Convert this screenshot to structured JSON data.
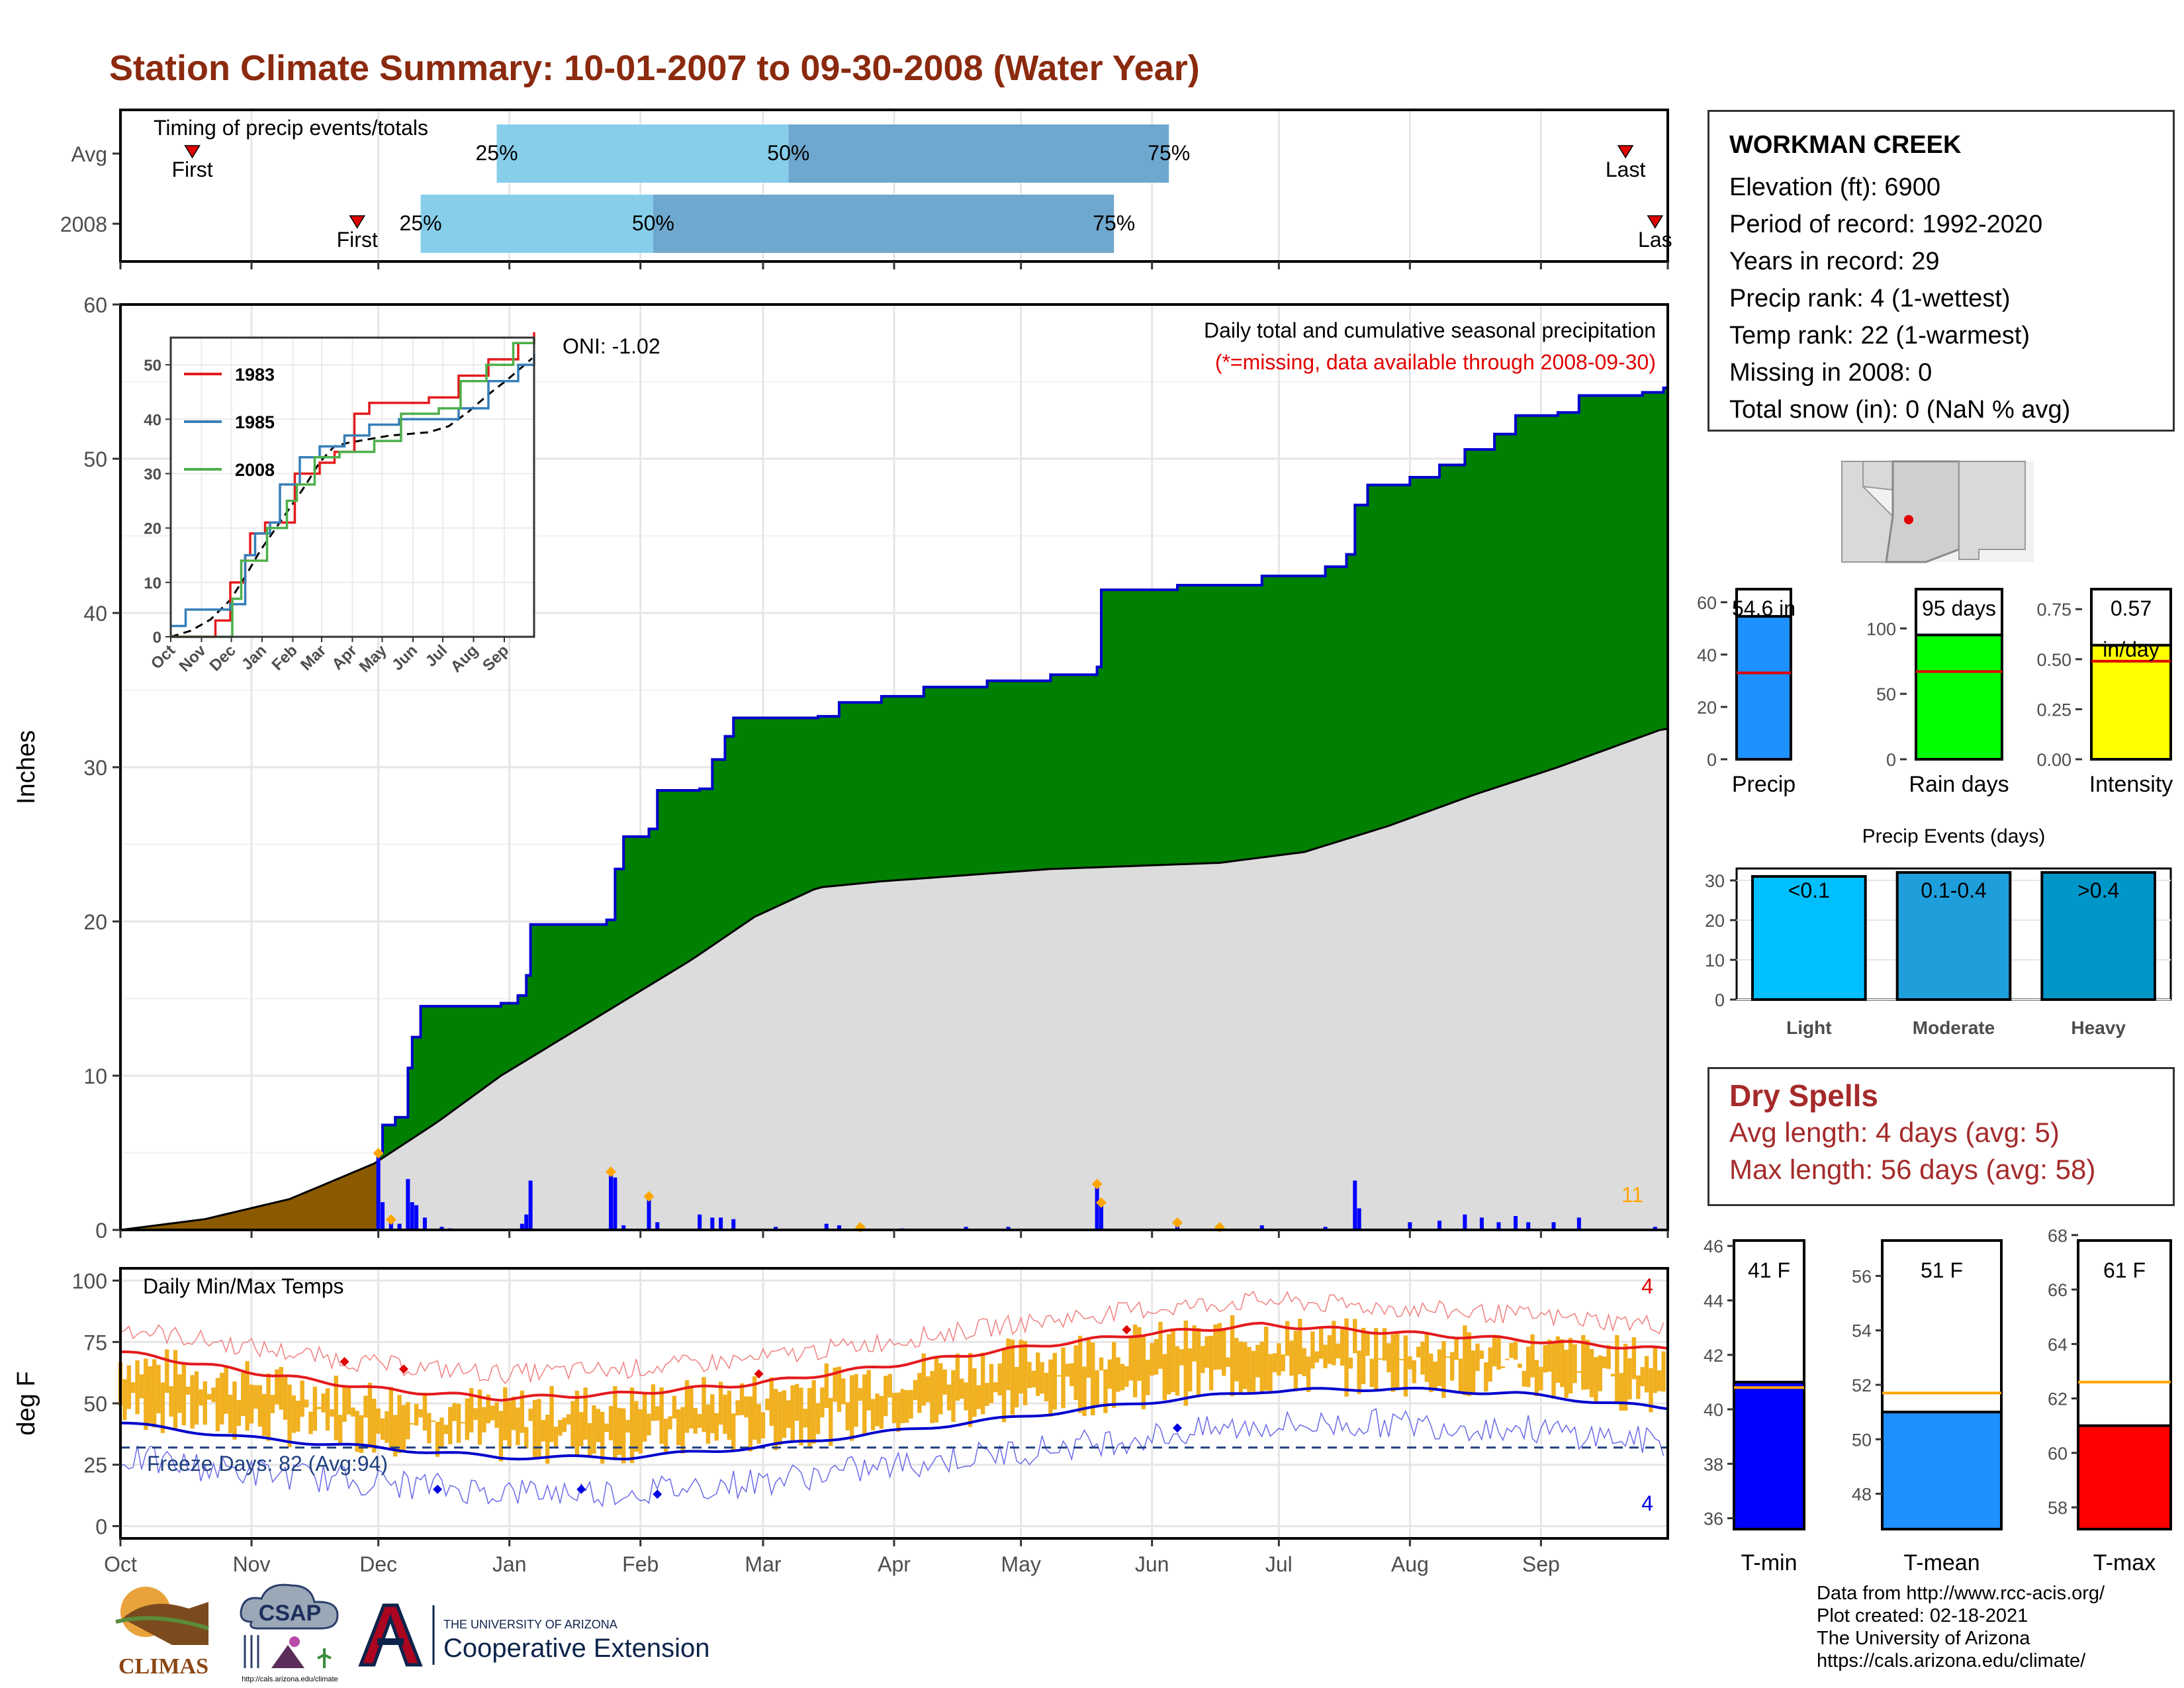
{
  "title": "Station Climate Summary: 10-01-2007 to 09-30-2008 (Water Year)",
  "station": {
    "name": "WORKMAN CREEK",
    "lines": [
      "Elevation (ft): 6900",
      "Period of record: 1992-2020",
      "Years in record: 29",
      "Precip rank: 4 (1-wettest)",
      "Temp rank: 22 (1-warmest)",
      "Missing in 2008: 0",
      "Total snow (in): 0 (NaN % avg)"
    ]
  },
  "dry_spells": {
    "heading": "Dry Spells",
    "avg": "Avg length: 4 days (avg: 5)",
    "max": "Max length: 56 days (avg: 58)"
  },
  "credits": [
    "Data from http://www.rcc-acis.org/",
    "Plot created: 02-18-2021",
    "The University of Arizona",
    "https://cals.arizona.edu/climate/"
  ],
  "logos": {
    "climas": "CLIMAS",
    "csap": "CSAP",
    "csap_url": "http://cals.arizona.edu/climate",
    "ua_small": "THE UNIVERSITY OF ARIZONA",
    "ua_big": "Cooperative Extension"
  },
  "colors": {
    "title": "#8B2A0E",
    "precip_green": "#008000",
    "precip_line": "#0000CD",
    "avg_fill": "#DCDCDC",
    "early_fill": "#8B5A00",
    "temp_bar": "#F0B020",
    "tmax_line": "#E41A1C",
    "tmin_line": "#0000CD",
    "light": "#00BFFF",
    "moderate": "#1E9FDC",
    "heavy": "#0096C8",
    "dry_text": "#A52A2A"
  },
  "chart_data": [
    {
      "type": "bar",
      "id": "timing",
      "title": "Timing of precip events/totals",
      "rows": [
        "Avg",
        "2008"
      ],
      "x_domain_days": [
        0,
        366
      ],
      "series": [
        {
          "name": "Avg",
          "first_day": 17,
          "q25_day": 89,
          "q50_day": 158,
          "q75_day": 248,
          "last_day": 356
        },
        {
          "name": "2008",
          "first_day": 56,
          "q25_day": 71,
          "q50_day": 126,
          "q75_day": 235,
          "last_day": 363
        }
      ],
      "labels": {
        "first": "First",
        "last": "Last",
        "last_2008": "Las",
        "q25": "25%",
        "q50": "50%",
        "q75": "75%"
      }
    },
    {
      "type": "area",
      "id": "precip",
      "title": "Daily total and cumulative seasonal precipitation",
      "subtitle": "(*=missing, data available through 2008-09-30)",
      "ylabel": "Inches",
      "ylim": [
        0,
        60
      ],
      "yticks": [
        0,
        10,
        20,
        30,
        40,
        50,
        60
      ],
      "oni": "ONI: -1.02",
      "corner_count": "11",
      "x_months": [
        "Oct",
        "Nov",
        "Dec",
        "Jan",
        "Feb",
        "Mar",
        "Apr",
        "May",
        "Jun",
        "Jul",
        "Aug",
        "Sep"
      ],
      "cumulative_2008": [
        {
          "day": 0,
          "value": 0
        },
        {
          "day": 60,
          "value": 0
        },
        {
          "day": 61,
          "value": 5.0
        },
        {
          "day": 62,
          "value": 6.8
        },
        {
          "day": 65,
          "value": 7.3
        },
        {
          "day": 68,
          "value": 10.5
        },
        {
          "day": 69,
          "value": 12.5
        },
        {
          "day": 71,
          "value": 14.5
        },
        {
          "day": 90,
          "value": 14.7
        },
        {
          "day": 94,
          "value": 15.2
        },
        {
          "day": 96,
          "value": 16.5
        },
        {
          "day": 97,
          "value": 19.8
        },
        {
          "day": 115,
          "value": 20.1
        },
        {
          "day": 117,
          "value": 23.4
        },
        {
          "day": 119,
          "value": 25.5
        },
        {
          "day": 125,
          "value": 26.0
        },
        {
          "day": 127,
          "value": 28.5
        },
        {
          "day": 137,
          "value": 28.6
        },
        {
          "day": 140,
          "value": 30.5
        },
        {
          "day": 143,
          "value": 32.0
        },
        {
          "day": 145,
          "value": 33.2
        },
        {
          "day": 165,
          "value": 33.3
        },
        {
          "day": 170,
          "value": 34.2
        },
        {
          "day": 180,
          "value": 34.6
        },
        {
          "day": 190,
          "value": 35.2
        },
        {
          "day": 205,
          "value": 35.6
        },
        {
          "day": 220,
          "value": 36.0
        },
        {
          "day": 231,
          "value": 36.5
        },
        {
          "day": 232,
          "value": 41.5
        },
        {
          "day": 250,
          "value": 41.8
        },
        {
          "day": 270,
          "value": 42.4
        },
        {
          "day": 285,
          "value": 43.0
        },
        {
          "day": 290,
          "value": 43.8
        },
        {
          "day": 292,
          "value": 47.0
        },
        {
          "day": 295,
          "value": 48.3
        },
        {
          "day": 305,
          "value": 48.8
        },
        {
          "day": 312,
          "value": 49.6
        },
        {
          "day": 318,
          "value": 50.6
        },
        {
          "day": 325,
          "value": 51.6
        },
        {
          "day": 330,
          "value": 52.8
        },
        {
          "day": 340,
          "value": 53.0
        },
        {
          "day": 345,
          "value": 54.1
        },
        {
          "day": 360,
          "value": 54.3
        },
        {
          "day": 365,
          "value": 54.6
        }
      ],
      "cumulative_avg": [
        {
          "day": 0,
          "value": 0
        },
        {
          "day": 20,
          "value": 0.7
        },
        {
          "day": 40,
          "value": 2.0
        },
        {
          "day": 60,
          "value": 4.3
        },
        {
          "day": 75,
          "value": 7.0
        },
        {
          "day": 90,
          "value": 10.0
        },
        {
          "day": 105,
          "value": 12.5
        },
        {
          "day": 120,
          "value": 15.0
        },
        {
          "day": 135,
          "value": 17.5
        },
        {
          "day": 150,
          "value": 20.3
        },
        {
          "day": 165,
          "value": 22.2
        },
        {
          "day": 180,
          "value": 22.6
        },
        {
          "day": 200,
          "value": 23.0
        },
        {
          "day": 220,
          "value": 23.4
        },
        {
          "day": 240,
          "value": 23.6
        },
        {
          "day": 260,
          "value": 23.8
        },
        {
          "day": 280,
          "value": 24.5
        },
        {
          "day": 300,
          "value": 26.2
        },
        {
          "day": 320,
          "value": 28.2
        },
        {
          "day": 340,
          "value": 30.0
        },
        {
          "day": 355,
          "value": 31.5
        },
        {
          "day": 365,
          "value": 32.5
        }
      ],
      "daily_bars": [
        {
          "day": 61,
          "value": 4.8
        },
        {
          "day": 62,
          "value": 1.8
        },
        {
          "day": 64,
          "value": 0.5
        },
        {
          "day": 66,
          "value": 0.4
        },
        {
          "day": 68,
          "value": 3.3
        },
        {
          "day": 69,
          "value": 1.8
        },
        {
          "day": 70,
          "value": 1.6
        },
        {
          "day": 72,
          "value": 0.8
        },
        {
          "day": 76,
          "value": 0.2
        },
        {
          "day": 78,
          "value": 0.1
        },
        {
          "day": 95,
          "value": 0.4
        },
        {
          "day": 96,
          "value": 1.0
        },
        {
          "day": 97,
          "value": 3.2
        },
        {
          "day": 116,
          "value": 3.6
        },
        {
          "day": 117,
          "value": 3.4
        },
        {
          "day": 119,
          "value": 0.3
        },
        {
          "day": 125,
          "value": 2.0
        },
        {
          "day": 127,
          "value": 0.5
        },
        {
          "day": 137,
          "value": 1.0
        },
        {
          "day": 140,
          "value": 0.8
        },
        {
          "day": 142,
          "value": 0.8
        },
        {
          "day": 145,
          "value": 0.7
        },
        {
          "day": 155,
          "value": 0.2
        },
        {
          "day": 167,
          "value": 0.4
        },
        {
          "day": 170,
          "value": 0.3
        },
        {
          "day": 185,
          "value": 0.1
        },
        {
          "day": 200,
          "value": 0.2
        },
        {
          "day": 210,
          "value": 0.2
        },
        {
          "day": 231,
          "value": 2.8
        },
        {
          "day": 232,
          "value": 1.6
        },
        {
          "day": 250,
          "value": 0.3
        },
        {
          "day": 270,
          "value": 0.3
        },
        {
          "day": 285,
          "value": 0.2
        },
        {
          "day": 292,
          "value": 3.2
        },
        {
          "day": 293,
          "value": 1.4
        },
        {
          "day": 305,
          "value": 0.5
        },
        {
          "day": 312,
          "value": 0.6
        },
        {
          "day": 318,
          "value": 1.0
        },
        {
          "day": 322,
          "value": 0.8
        },
        {
          "day": 326,
          "value": 0.5
        },
        {
          "day": 330,
          "value": 0.9
        },
        {
          "day": 333,
          "value": 0.5
        },
        {
          "day": 339,
          "value": 0.5
        },
        {
          "day": 345,
          "value": 0.8
        },
        {
          "day": 363,
          "value": 0.2
        }
      ],
      "markers_days": [
        61,
        64,
        116,
        125,
        231,
        232,
        250,
        260,
        175
      ]
    },
    {
      "type": "line",
      "id": "inset",
      "series": [
        {
          "name": "1983",
          "color": "#E41A1C"
        },
        {
          "name": "1985",
          "color": "#377EB8"
        },
        {
          "name": "2008",
          "color": "#4DAF4A"
        }
      ],
      "ylim": [
        0,
        55
      ],
      "yticks": [
        0,
        10,
        20,
        30,
        40,
        50
      ],
      "x_months": [
        "Oct",
        "Nov",
        "Dec",
        "Jan",
        "Feb",
        "Mar",
        "Apr",
        "May",
        "Jun",
        "Jul",
        "Aug",
        "Sep"
      ]
    },
    {
      "type": "line",
      "id": "temps",
      "title": "Daily Min/Max Temps",
      "ylabel": "deg F",
      "ylim": [
        -5,
        105
      ],
      "yticks": [
        0,
        25,
        50,
        75,
        100
      ],
      "freeze_text": "Freeze Days: 82 (Avg:94)",
      "freeze_line": 32,
      "top_count": "4",
      "bottom_count": "4",
      "x_months": [
        "Oct",
        "Nov",
        "Dec",
        "Jan",
        "Feb",
        "Mar",
        "Apr",
        "May",
        "Jun",
        "Jul",
        "Aug",
        "Sep"
      ],
      "avg_tmax": [
        {
          "day": 0,
          "value": 71
        },
        {
          "day": 30,
          "value": 63
        },
        {
          "day": 60,
          "value": 56
        },
        {
          "day": 90,
          "value": 52
        },
        {
          "day": 120,
          "value": 54
        },
        {
          "day": 150,
          "value": 58
        },
        {
          "day": 180,
          "value": 65
        },
        {
          "day": 210,
          "value": 72
        },
        {
          "day": 240,
          "value": 78
        },
        {
          "day": 270,
          "value": 82
        },
        {
          "day": 300,
          "value": 79
        },
        {
          "day": 330,
          "value": 76
        },
        {
          "day": 365,
          "value": 72
        }
      ],
      "avg_tmin": [
        {
          "day": 0,
          "value": 42
        },
        {
          "day": 30,
          "value": 36
        },
        {
          "day": 60,
          "value": 32
        },
        {
          "day": 90,
          "value": 28
        },
        {
          "day": 120,
          "value": 28
        },
        {
          "day": 150,
          "value": 32
        },
        {
          "day": 180,
          "value": 38
        },
        {
          "day": 210,
          "value": 44
        },
        {
          "day": 240,
          "value": 50
        },
        {
          "day": 270,
          "value": 55
        },
        {
          "day": 300,
          "value": 56
        },
        {
          "day": 330,
          "value": 54
        },
        {
          "day": 365,
          "value": 48
        }
      ]
    },
    {
      "type": "bar",
      "id": "totals",
      "panels": [
        {
          "name": "Precip",
          "value": 54.6,
          "avg": 33,
          "ylim": [
            0,
            65
          ],
          "yticks": [
            0,
            20,
            40,
            60
          ],
          "label": "54.6 in",
          "color": "#1E90FF"
        },
        {
          "name": "Rain days",
          "value": 95,
          "avg": 67,
          "ylim": [
            0,
            130
          ],
          "yticks": [
            0,
            50,
            100
          ],
          "label": "95 days",
          "color": "#00FF00"
        },
        {
          "name": "Intensity",
          "value": 0.57,
          "avg": 0.49,
          "ylim": [
            0,
            0.85
          ],
          "yticks": [
            0.0,
            0.25,
            0.5,
            0.75
          ],
          "label": "0.57",
          "label2": "in/day",
          "color": "#FFFF00"
        }
      ]
    },
    {
      "type": "bar",
      "id": "events",
      "title": "Precip Events (days)",
      "categories": [
        "Light",
        "Moderate",
        "Heavy"
      ],
      "labels": [
        "<0.1",
        "0.1-0.4",
        ">0.4"
      ],
      "values": [
        31,
        32,
        32
      ],
      "ylim": [
        0,
        33
      ],
      "yticks": [
        0,
        10,
        20,
        30
      ]
    },
    {
      "type": "bar",
      "id": "temp_totals",
      "panels": [
        {
          "name": "T-min",
          "value": 41,
          "avg": 40.8,
          "ylim": [
            35.6,
            46.2
          ],
          "yticks": [
            36,
            38,
            40,
            42,
            44,
            46
          ],
          "label": "41 F",
          "color": "#0000FF"
        },
        {
          "name": "T-mean",
          "value": 51,
          "avg": 51.7,
          "ylim": [
            46.7,
            57.3
          ],
          "yticks": [
            48,
            50,
            52,
            54,
            56
          ],
          "label": "51 F",
          "color": "#1E90FF"
        },
        {
          "name": "T-max",
          "value": 61,
          "avg": 62.6,
          "ylim": [
            57.2,
            67.8
          ],
          "yticks": [
            58,
            60,
            62,
            64,
            66,
            68
          ],
          "label": "61 F",
          "color": "#FF0000"
        }
      ]
    }
  ]
}
